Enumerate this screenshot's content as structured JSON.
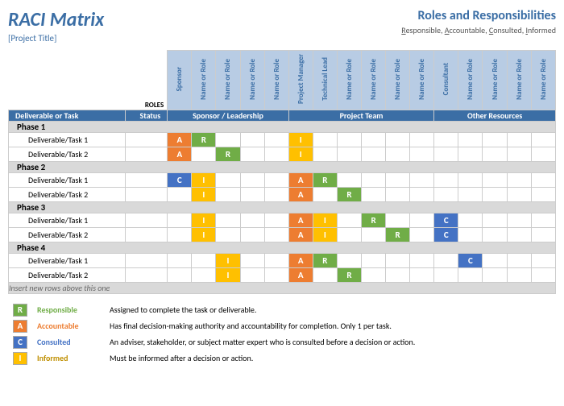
{
  "header": {
    "title": "RACI Matrix",
    "subtitle": "[Project Title]",
    "rolesTitle": "Roles and Responsibilities",
    "rolesSub": [
      "R",
      "esponsible, ",
      "A",
      "ccountable, ",
      "C",
      "onsulted, ",
      "I",
      "nformed"
    ]
  },
  "colors": {
    "R": "#70ad47",
    "A": "#ed7d31",
    "C": "#4472c4",
    "I": "#ffc000",
    "headerBlue": "#3b6ea5",
    "lightBlue": "#b8cce4",
    "phaseGrey": "#d9d9d9"
  },
  "rolesLabel": "ROLES",
  "roleHeaders": [
    "Sponsor",
    "Name or Role",
    "Name or Role",
    "Name or Role",
    "Name or Role",
    "Project Manager",
    "Technical Lead",
    "Name or Role",
    "Name or Role",
    "Name or Role",
    "Name or Role",
    "Consultant",
    "Name or Role",
    "Name or Role",
    "Name or Role",
    "Name or Role"
  ],
  "groupHeaders": {
    "task": "Deliverable or Task",
    "status": "Status",
    "groups": [
      {
        "label": "Sponsor / Leadership",
        "span": 5
      },
      {
        "label": "Project Team",
        "span": 6
      },
      {
        "label": "Other Resources",
        "span": 5
      }
    ]
  },
  "phases": [
    {
      "name": "Phase 1",
      "tasks": [
        {
          "name": "Deliverable/Task 1",
          "cells": [
            "A",
            "R",
            "",
            "",
            "",
            "I",
            "",
            "",
            "",
            "",
            "",
            "",
            "",
            "",
            "",
            ""
          ]
        },
        {
          "name": "Deliverable/Task 2",
          "cells": [
            "A",
            "",
            "R",
            "",
            "",
            "I",
            "",
            "",
            "",
            "",
            "",
            "",
            "",
            "",
            "",
            ""
          ]
        }
      ]
    },
    {
      "name": "Phase 2",
      "tasks": [
        {
          "name": "Deliverable/Task 1",
          "cells": [
            "C",
            "I",
            "",
            "",
            "",
            "A",
            "R",
            "",
            "",
            "",
            "",
            "",
            "",
            "",
            "",
            ""
          ]
        },
        {
          "name": "Deliverable/Task 2",
          "cells": [
            "",
            "I",
            "",
            "",
            "",
            "A",
            "",
            "R",
            "",
            "",
            "",
            "",
            "",
            "",
            "",
            ""
          ]
        }
      ]
    },
    {
      "name": "Phase 3",
      "tasks": [
        {
          "name": "Deliverable/Task 1",
          "cells": [
            "",
            "I",
            "",
            "",
            "",
            "A",
            "I",
            "",
            "R",
            "",
            "",
            "C",
            "",
            "",
            "",
            ""
          ]
        },
        {
          "name": "Deliverable/Task 2",
          "cells": [
            "",
            "I",
            "",
            "",
            "",
            "A",
            "I",
            "",
            "",
            "R",
            "",
            "C",
            "",
            "",
            "",
            ""
          ]
        }
      ]
    },
    {
      "name": "Phase 4",
      "tasks": [
        {
          "name": "Deliverable/Task 1",
          "cells": [
            "",
            "",
            "I",
            "",
            "",
            "A",
            "R",
            "",
            "",
            "",
            "",
            "",
            "C",
            "",
            "",
            ""
          ]
        },
        {
          "name": "Deliverable/Task 2",
          "cells": [
            "",
            "",
            "I",
            "",
            "",
            "A",
            "",
            "R",
            "",
            "",
            "",
            "",
            "",
            "",
            "",
            ""
          ]
        }
      ]
    }
  ],
  "insertRow": "Insert new rows above this one",
  "legend": [
    {
      "code": "R",
      "label": "Responsible",
      "color": "#70ad47",
      "labelColor": "#70ad47",
      "desc": "Assigned to complete the task or deliverable."
    },
    {
      "code": "A",
      "label": "Accountable",
      "color": "#ed7d31",
      "labelColor": "#ed7d31",
      "desc": "Has final decision-making authority and accountability for completion. Only 1 per task."
    },
    {
      "code": "C",
      "label": "Consulted",
      "color": "#4472c4",
      "labelColor": "#4472c4",
      "desc": "An adviser, stakeholder, or subject matter expert who is consulted before a decision or action."
    },
    {
      "code": "I",
      "label": "Informed",
      "color": "#ffc000",
      "labelColor": "#bf8f00",
      "desc": "Must be informed after a decision or action."
    }
  ]
}
